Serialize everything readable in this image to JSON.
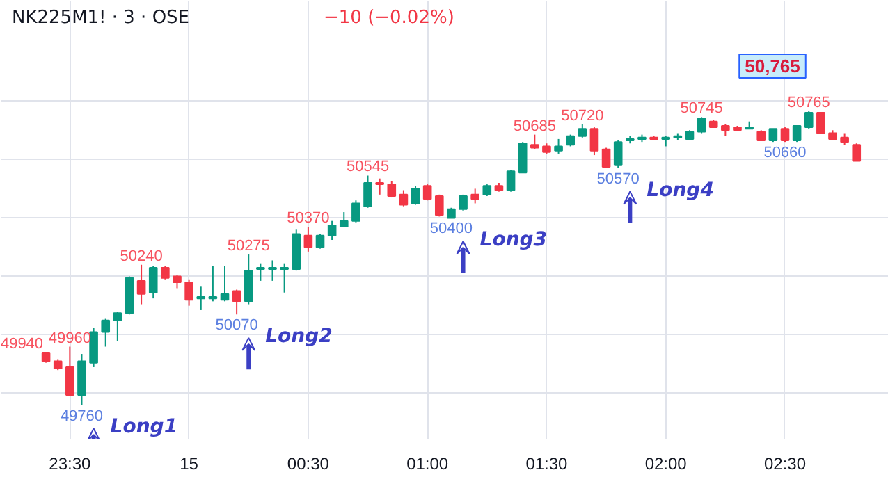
{
  "chart_data": {
    "type": "candlestick",
    "title": "NK225M1! · 3 · OSE",
    "subtitle": "−10 (−0.02%)",
    "categories": [
      null,
      null,
      "23:30",
      null,
      null,
      null,
      null,
      null,
      null,
      null,
      null,
      null,
      "15",
      null,
      null,
      null,
      null,
      null,
      null,
      null,
      null,
      null,
      "00:30",
      null,
      null,
      null,
      null,
      null,
      null,
      null,
      null,
      null,
      "01:00",
      null,
      null,
      null,
      null,
      null,
      null,
      null,
      null,
      null,
      "01:30",
      null,
      null,
      null,
      null,
      null,
      null,
      null,
      null,
      null,
      "02:00",
      null,
      null,
      null,
      null,
      null,
      null,
      null,
      null,
      null,
      "02:30",
      null,
      null,
      null,
      null,
      null,
      null
    ],
    "value_labels": [
      "49940",
      null,
      "49960",
      "49760",
      null,
      null,
      null,
      null,
      "50240",
      null,
      null,
      null,
      null,
      null,
      null,
      null,
      "50070",
      "50275",
      null,
      null,
      null,
      null,
      "50370",
      null,
      null,
      null,
      null,
      "50545",
      null,
      null,
      null,
      null,
      null,
      null,
      "50400",
      null,
      null,
      null,
      null,
      null,
      null,
      "50685",
      null,
      null,
      null,
      "50720",
      null,
      null,
      "50570",
      null,
      null,
      null,
      null,
      null,
      null,
      "50745",
      null,
      null,
      null,
      null,
      null,
      null,
      "50660",
      null,
      "50765",
      null,
      null,
      null,
      null
    ],
    "ohlc": [
      [
        49940,
        49940,
        49905,
        49910
      ],
      [
        49910,
        49915,
        49880,
        49885
      ],
      [
        49890,
        49960,
        49790,
        49795
      ],
      [
        49795,
        49935,
        49760,
        49910
      ],
      [
        49905,
        50025,
        49890,
        50010
      ],
      [
        50010,
        50055,
        49960,
        50050
      ],
      [
        50050,
        50080,
        49980,
        50075
      ],
      [
        50075,
        50200,
        50070,
        50195
      ],
      [
        50185,
        50240,
        50105,
        50140
      ],
      [
        50145,
        50235,
        50125,
        50230
      ],
      [
        50230,
        50235,
        50190,
        50195
      ],
      [
        50200,
        50205,
        50160,
        50180
      ],
      [
        50180,
        50190,
        50100,
        50120
      ],
      [
        50125,
        50165,
        50085,
        50130
      ],
      [
        50125,
        50235,
        50115,
        50130
      ],
      [
        50120,
        50235,
        50115,
        50140
      ],
      [
        50150,
        50155,
        50070,
        50115
      ],
      [
        50115,
        50275,
        50105,
        50220
      ],
      [
        50225,
        50245,
        50185,
        50230
      ],
      [
        50225,
        50255,
        50185,
        50230
      ],
      [
        50225,
        50245,
        50145,
        50230
      ],
      [
        50225,
        50360,
        50220,
        50345
      ],
      [
        50340,
        50370,
        50285,
        50300
      ],
      [
        50300,
        50345,
        50295,
        50340
      ],
      [
        50340,
        50390,
        50325,
        50375
      ],
      [
        50370,
        50420,
        50370,
        50390
      ],
      [
        50390,
        50460,
        50385,
        50450
      ],
      [
        50440,
        50545,
        50435,
        50520
      ],
      [
        50520,
        50535,
        50480,
        50515
      ],
      [
        50515,
        50525,
        50470,
        50475
      ],
      [
        50480,
        50495,
        50440,
        50445
      ],
      [
        50450,
        50510,
        50445,
        50500
      ],
      [
        50510,
        50515,
        50460,
        50465
      ],
      [
        50475,
        50480,
        50405,
        50410
      ],
      [
        50400,
        50435,
        50400,
        50430
      ],
      [
        50430,
        50480,
        50425,
        50475
      ],
      [
        50480,
        50500,
        50450,
        50465
      ],
      [
        50480,
        50515,
        50475,
        50510
      ],
      [
        50510,
        50520,
        50490,
        50495
      ],
      [
        50495,
        50565,
        50490,
        50560
      ],
      [
        50555,
        50660,
        50555,
        50655
      ],
      [
        50650,
        50685,
        50635,
        50640
      ],
      [
        50645,
        50655,
        50620,
        50625
      ],
      [
        50630,
        50670,
        50620,
        50645
      ],
      [
        50650,
        50685,
        50645,
        50680
      ],
      [
        50680,
        50720,
        50675,
        50705
      ],
      [
        50705,
        50710,
        50615,
        50630
      ],
      [
        50635,
        50640,
        50575,
        50575
      ],
      [
        50580,
        50665,
        50570,
        50660
      ],
      [
        50665,
        50680,
        50655,
        50670
      ],
      [
        50670,
        50685,
        50660,
        50675
      ],
      [
        50675,
        50680,
        50665,
        50670
      ],
      [
        50670,
        50680,
        50645,
        50675
      ],
      [
        50675,
        50690,
        50665,
        50680
      ],
      [
        50670,
        50700,
        50665,
        50695
      ],
      [
        50695,
        50745,
        50690,
        50740
      ],
      [
        50730,
        50735,
        50710,
        50710
      ],
      [
        50715,
        50720,
        50680,
        50700
      ],
      [
        50710,
        50715,
        50700,
        50700
      ],
      [
        50705,
        50730,
        50705,
        50710
      ],
      [
        50695,
        50700,
        50665,
        50665
      ],
      [
        50665,
        50705,
        50660,
        50705
      ],
      [
        50705,
        50710,
        50660,
        50665
      ],
      [
        50665,
        50715,
        50660,
        50715
      ],
      [
        50710,
        50765,
        50705,
        50760
      ],
      [
        50760,
        50760,
        50690,
        50690
      ],
      [
        50690,
        50700,
        50670,
        50670
      ],
      [
        50675,
        50690,
        50650,
        50660
      ],
      [
        50650,
        50655,
        50595,
        50595
      ]
    ],
    "colors": [
      "#f23645",
      "#f23645",
      "#f23645",
      "#089981",
      "#089981",
      "#089981",
      "#089981",
      "#089981",
      "#f23645",
      "#089981",
      "#f23645",
      "#f23645",
      "#f23645",
      "#089981",
      "#089981",
      "#089981",
      "#f23645",
      "#089981",
      "#089981",
      "#089981",
      "#089981",
      "#089981",
      "#f23645",
      "#089981",
      "#089981",
      "#089981",
      "#089981",
      "#089981",
      "#f23645",
      "#f23645",
      "#f23645",
      "#089981",
      "#f23645",
      "#f23645",
      "#089981",
      "#089981",
      "#f23645",
      "#089981",
      "#f23645",
      "#089981",
      "#089981",
      "#f23645",
      "#f23645",
      "#089981",
      "#089981",
      "#089981",
      "#f23645",
      "#f23645",
      "#089981",
      "#089981",
      "#089981",
      "#f23645",
      "#089981",
      "#089981",
      "#089981",
      "#089981",
      "#f23645",
      "#f23645",
      "#f23645",
      "#089981",
      "#f23645",
      "#089981",
      "#f23645",
      "#089981",
      "#089981",
      "#f23645",
      "#f23645",
      "#f23645",
      "#f23645"
    ],
    "ylim": [
      49645,
      51143
    ],
    "yticks": [
      {
        "value": 49800,
        "label": null
      },
      {
        "value": 50000,
        "label": null
      },
      {
        "value": 50200,
        "label": null
      },
      {
        "value": 50400,
        "label": null
      },
      {
        "value": 50600,
        "label": null
      },
      {
        "value": 50800,
        "label": null
      }
    ],
    "grid": true,
    "tick_labels": "x",
    "annotations": [
      "Long1",
      "Long2",
      "Long3",
      "Long4",
      "50,765"
    ]
  }
}
